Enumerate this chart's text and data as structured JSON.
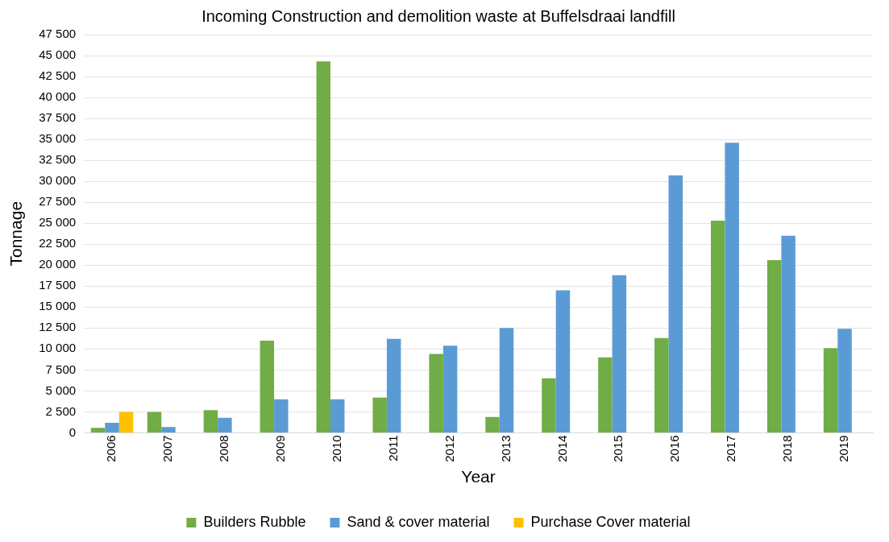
{
  "chart_data": {
    "type": "bar",
    "title": "Incoming Construction and demolition waste at Buffelsdraai landfill",
    "xlabel": "Year",
    "ylabel": "Tonnage",
    "categories": [
      "2006",
      "2007",
      "2008",
      "2009",
      "2010",
      "2011",
      "2012",
      "2013",
      "2014",
      "2015",
      "2016",
      "2017",
      "2018",
      "2019"
    ],
    "series": [
      {
        "name": "Builders Rubble",
        "color": "#70ad47",
        "values": [
          600,
          2500,
          2700,
          11000,
          44300,
          4200,
          9400,
          1900,
          6500,
          9000,
          11300,
          25300,
          20600,
          10100
        ]
      },
      {
        "name": "Sand & cover material",
        "color": "#5b9bd5",
        "values": [
          1200,
          700,
          1800,
          4000,
          4000,
          11200,
          10400,
          12500,
          17000,
          18800,
          30700,
          34600,
          23500,
          12400
        ]
      },
      {
        "name": "Purchase Cover material",
        "color": "#ffc000",
        "values": [
          2500,
          null,
          null,
          null,
          null,
          null,
          null,
          null,
          null,
          null,
          null,
          null,
          null,
          null
        ]
      }
    ],
    "ylim": [
      0,
      47500
    ],
    "yticks": [
      0,
      {
        "value": 2500,
        "label": "2 500"
      },
      {
        "value": 5000,
        "label": "5 000"
      },
      {
        "value": 7500,
        "label": "7 500"
      },
      {
        "value": 10000,
        "label": "10 000"
      },
      {
        "value": 12500,
        "label": "12 500"
      },
      {
        "value": 15000,
        "label": "15 000"
      },
      {
        "value": 17500,
        "label": "17 500"
      },
      {
        "value": 20000,
        "label": "20 000"
      },
      {
        "value": 22500,
        "label": "22 500"
      },
      {
        "value": 25000,
        "label": "25 000"
      },
      {
        "value": 27500,
        "label": "27 500"
      },
      {
        "value": 30000,
        "label": "30 000"
      },
      {
        "value": 32500,
        "label": "32 500"
      },
      {
        "value": 35000,
        "label": "35 000"
      },
      {
        "value": 37500,
        "label": "37 500"
      },
      {
        "value": 40000,
        "label": "40 000"
      },
      {
        "value": 42500,
        "label": "42 500"
      },
      {
        "value": 45000,
        "label": "45 000"
      },
      {
        "value": 47500,
        "label": "47 500"
      }
    ],
    "grid": "y",
    "legend": "bottom"
  }
}
